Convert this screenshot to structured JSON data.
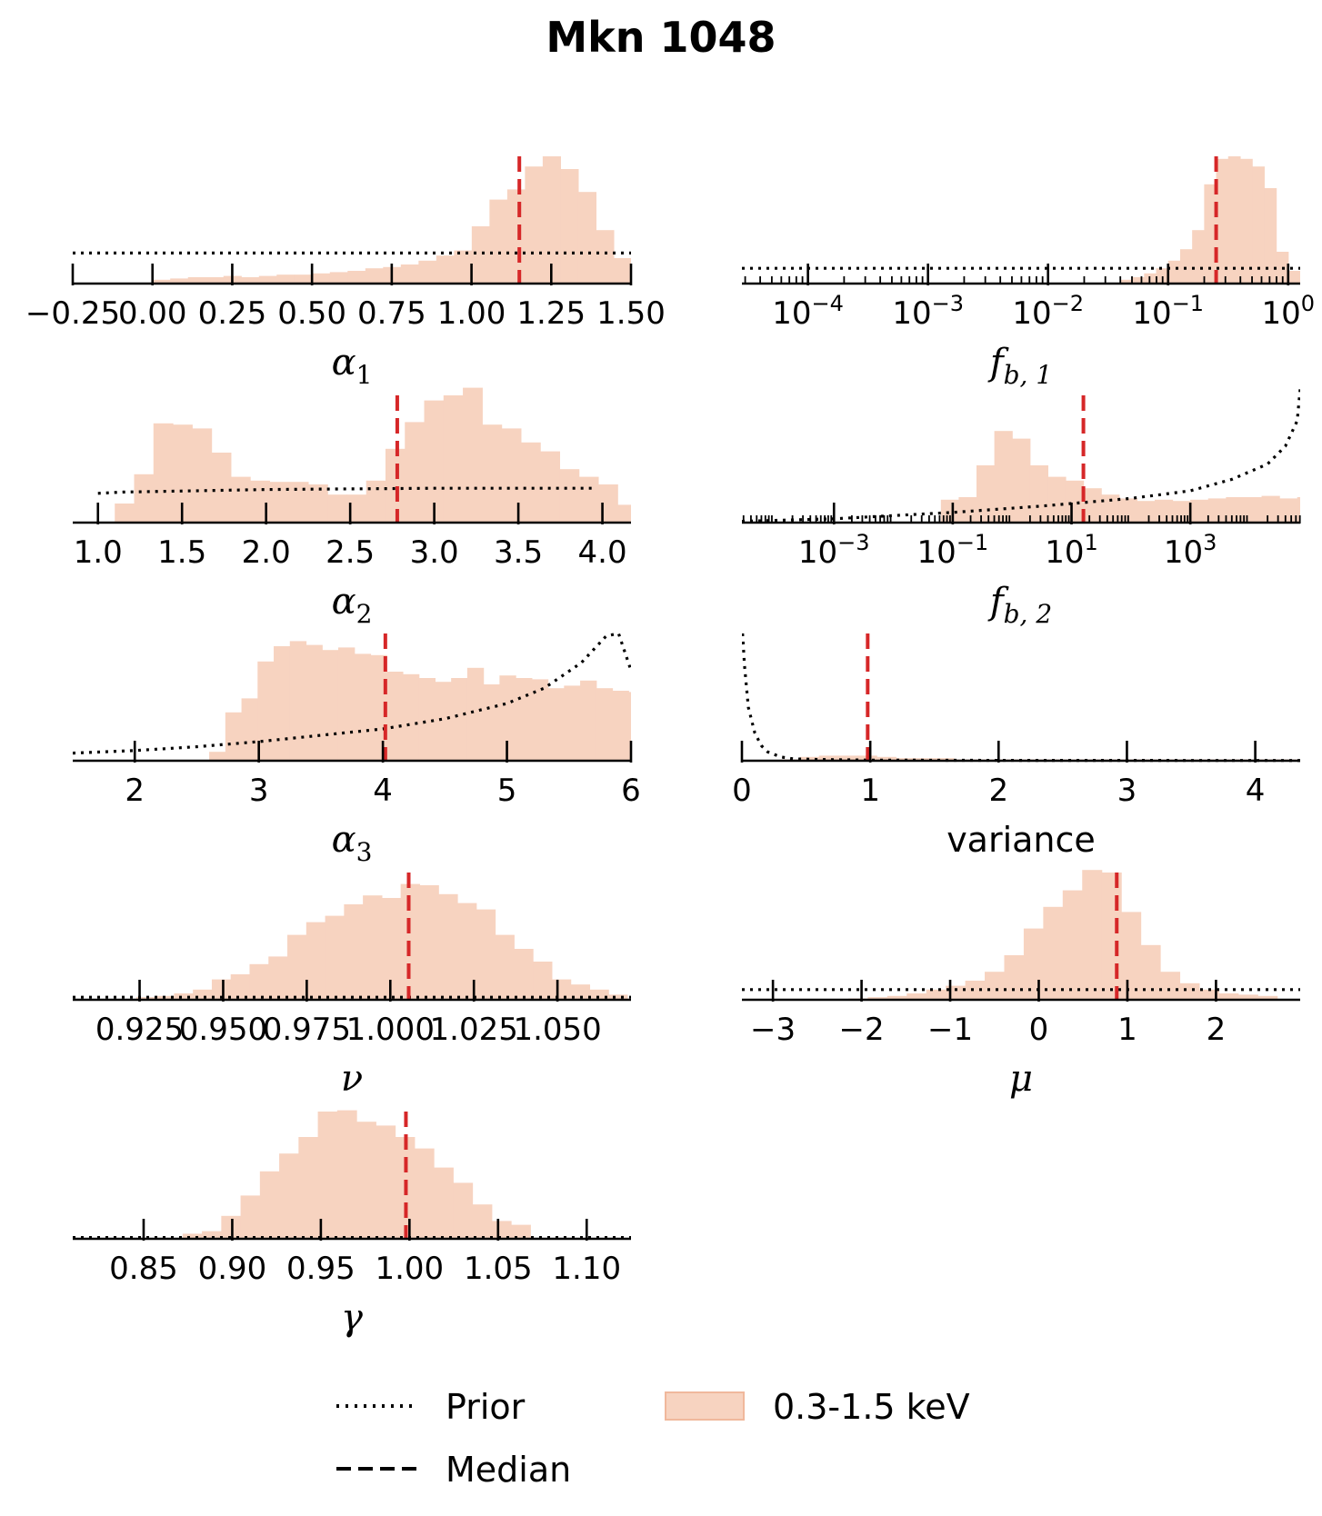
{
  "title": "Mkn 1048",
  "legend": {
    "prior_label": "Prior",
    "median_label": "Median",
    "hist_label": "0.3-1.5 keV"
  },
  "colors": {
    "hist_fill": "#f7d3c0",
    "hist_edge": "#f0b89c",
    "median": "#d62728",
    "prior": "#000000"
  },
  "chart_data": [
    {
      "type": "histogram",
      "id": "alpha1",
      "xlabel": "α",
      "xlabel_sub": "1",
      "scale": "linear",
      "xlim": [
        -0.25,
        1.5
      ],
      "ticks": [
        -0.25,
        0.0,
        0.25,
        0.5,
        0.75,
        1.0,
        1.25,
        1.5
      ],
      "tick_labels": [
        "−0.25",
        "0.00",
        "0.25",
        "0.50",
        "0.75",
        "1.00",
        "1.25",
        "1.50"
      ],
      "bin_start": 0.0,
      "bin_width": 0.0556,
      "heights": [
        0.03,
        0.04,
        0.05,
        0.05,
        0.06,
        0.05,
        0.06,
        0.07,
        0.07,
        0.08,
        0.09,
        0.1,
        0.12,
        0.13,
        0.15,
        0.18,
        0.22,
        0.26,
        0.45,
        0.66,
        0.74,
        0.92,
        1.0,
        0.9,
        0.72,
        0.42,
        0.2
      ],
      "median": 1.15,
      "prior": {
        "x": [
          -0.25,
          1.5
        ],
        "y": [
          0.24,
          0.24
        ]
      }
    },
    {
      "type": "histogram",
      "id": "fb1",
      "xlabel": "f",
      "xlabel_sub": "b, 1",
      "scale": "log",
      "xlim": [
        -4.55,
        0.1
      ],
      "ticks": [
        -4,
        -3,
        -2,
        -1,
        0
      ],
      "tick_labels": [
        "−4",
        "−3",
        "−2",
        "−1",
        "0"
      ],
      "bin_start": -1.4,
      "bin_width": 0.1,
      "heights": [
        0.03,
        0.05,
        0.08,
        0.12,
        0.18,
        0.27,
        0.42,
        0.78,
        0.98,
        1.0,
        0.98,
        0.92,
        0.75,
        0.25,
        0.1
      ],
      "median": -0.6,
      "prior": {
        "x": [
          -4.55,
          0.1
        ],
        "y": [
          0.12,
          0.12
        ]
      }
    },
    {
      "type": "histogram",
      "id": "alpha2",
      "xlabel": "α",
      "xlabel_sub": "2",
      "scale": "linear",
      "xlim": [
        0.85,
        4.17
      ],
      "ticks": [
        1.0,
        1.5,
        2.0,
        2.5,
        3.0,
        3.5,
        4.0
      ],
      "tick_labels": [
        "1.0",
        "1.5",
        "2.0",
        "2.5",
        "3.0",
        "3.5",
        "4.0"
      ],
      "bin_start": 1.1,
      "bin_width": 0.115,
      "heights": [
        0.15,
        0.38,
        0.78,
        0.77,
        0.74,
        0.55,
        0.36,
        0.33,
        0.32,
        0.32,
        0.3,
        0.22,
        0.22,
        0.33,
        0.58,
        0.79,
        0.96,
        1.0,
        1.06,
        0.77,
        0.74,
        0.63,
        0.56,
        0.42,
        0.36,
        0.3,
        0.14,
        0.05
      ],
      "median": 2.78,
      "prior": {
        "x": [
          1.0,
          1.15,
          2.0,
          3.0,
          3.5,
          3.95
        ],
        "y": [
          0.23,
          0.24,
          0.26,
          0.27,
          0.27,
          0.27
        ]
      }
    },
    {
      "type": "histogram",
      "id": "fb2",
      "xlabel": "f",
      "xlabel_sub": "b, 2",
      "scale": "log",
      "xlim": [
        -4.55,
        4.85
      ],
      "ticks": [
        -3,
        -1,
        1,
        3
      ],
      "tick_labels": [
        "−3",
        "−1",
        "1",
        "3"
      ],
      "bin_start": -1.2,
      "bin_width": 0.3,
      "heights": [
        0.18,
        0.2,
        0.45,
        0.72,
        0.66,
        0.45,
        0.36,
        0.33,
        0.27,
        0.22,
        0.19,
        0.17,
        0.18,
        0.17,
        0.18,
        0.19,
        0.2,
        0.2,
        0.21,
        0.19,
        0.2,
        0.19,
        0.2,
        0.17,
        0.2,
        0.26
      ],
      "median": 1.2,
      "prior": {
        "x": [
          -4.55,
          -3.0,
          -1.0,
          0.5,
          2.0,
          3.0,
          3.7,
          4.3,
          4.6,
          4.8,
          4.85
        ],
        "y": [
          0.01,
          0.03,
          0.08,
          0.13,
          0.19,
          0.25,
          0.34,
          0.46,
          0.6,
          0.8,
          1.05
        ]
      }
    },
    {
      "type": "histogram",
      "id": "alpha3",
      "xlabel": "α",
      "xlabel_sub": "3",
      "scale": "linear",
      "xlim": [
        1.5,
        6.0
      ],
      "ticks": [
        2,
        3,
        4,
        5,
        6
      ],
      "tick_labels": [
        "2",
        "3",
        "4",
        "5",
        "6"
      ],
      "bin_start": 2.6,
      "bin_width": 0.13,
      "heights": [
        0.07,
        0.38,
        0.49,
        0.78,
        0.9,
        0.94,
        0.91,
        0.87,
        0.89,
        0.84,
        0.83,
        0.7,
        0.68,
        0.65,
        0.62,
        0.65,
        0.73,
        0.6,
        0.67,
        0.65,
        0.64,
        0.57,
        0.59,
        0.63,
        0.57,
        0.55,
        0.54
      ],
      "median": 4.02,
      "prior": {
        "x": [
          1.5,
          2.0,
          2.5,
          3.0,
          3.5,
          4.0,
          4.5,
          5.0,
          5.3,
          5.6,
          5.8,
          5.9,
          6.0
        ],
        "y": [
          0.06,
          0.08,
          0.11,
          0.15,
          0.2,
          0.25,
          0.33,
          0.45,
          0.57,
          0.77,
          0.98,
          1.0,
          0.71
        ]
      }
    },
    {
      "type": "histogram",
      "id": "variance",
      "xlabel": "variance",
      "xlabel_sub": "",
      "scale": "linear",
      "xlim": [
        0,
        4.35
      ],
      "ticks": [
        0,
        1,
        2,
        3,
        4
      ],
      "tick_labels": [
        "0",
        "1",
        "2",
        "3",
        "4"
      ],
      "bin_start": 0.3,
      "bin_width": 0.15,
      "heights": [
        0.01,
        0.03,
        0.04,
        0.04,
        0.04,
        0.03,
        0.02,
        0.02,
        0.02,
        0.01,
        0.01,
        0.01,
        0.01,
        0.01,
        0.01,
        0.01,
        0.01,
        0.01,
        0.01,
        0.01,
        0.01,
        0.01,
        0.01,
        0.01,
        0.01,
        0.01,
        0.01
      ],
      "median": 0.98,
      "prior": {
        "x": [
          0.005,
          0.02,
          0.05,
          0.1,
          0.15,
          0.2,
          0.3,
          0.4,
          0.6,
          1.0,
          2.0,
          4.35
        ],
        "y": [
          1.0,
          0.75,
          0.42,
          0.22,
          0.12,
          0.07,
          0.03,
          0.015,
          0.01,
          0.005,
          0.003,
          0.002
        ]
      }
    },
    {
      "type": "histogram",
      "id": "nu",
      "xlabel": "ν",
      "xlabel_sub": "",
      "scale": "linear",
      "xlim": [
        0.905,
        1.072
      ],
      "ticks": [
        0.925,
        0.95,
        0.975,
        1.0,
        1.025,
        1.05
      ],
      "tick_labels": [
        "0.925",
        "0.950",
        "0.975",
        "1.000",
        "1.025",
        "1.050"
      ],
      "bin_start": 0.924,
      "bin_width": 0.00565,
      "heights": [
        0.02,
        0.03,
        0.05,
        0.08,
        0.16,
        0.2,
        0.28,
        0.34,
        0.51,
        0.61,
        0.66,
        0.75,
        0.82,
        0.8,
        0.91,
        0.9,
        0.83,
        0.76,
        0.71,
        0.51,
        0.4,
        0.3,
        0.16,
        0.12,
        0.08,
        0.04
      ],
      "median": 1.0055,
      "prior": {
        "x": [
          0.905,
          1.072
        ],
        "y": [
          0.02,
          0.02
        ]
      }
    },
    {
      "type": "histogram",
      "id": "mu",
      "xlabel": "μ",
      "xlabel_sub": "",
      "scale": "linear",
      "xlim": [
        -3.35,
        2.95
      ],
      "ticks": [
        -3,
        -2,
        -1,
        0,
        1,
        2
      ],
      "tick_labels": [
        "−3",
        "−2",
        "−1",
        "0",
        "1",
        "2"
      ],
      "bin_start": -2.15,
      "bin_width": 0.22,
      "heights": [
        0.01,
        0.02,
        0.03,
        0.05,
        0.08,
        0.11,
        0.15,
        0.22,
        0.35,
        0.56,
        0.73,
        0.86,
        1.02,
        1.0,
        0.69,
        0.43,
        0.22,
        0.13,
        0.08,
        0.05,
        0.04,
        0.03
      ],
      "median": 0.88,
      "prior": {
        "x": [
          -3.35,
          2.95
        ],
        "y": [
          0.08,
          0.08
        ]
      }
    },
    {
      "type": "histogram",
      "id": "gamma",
      "xlabel": "γ",
      "xlabel_sub": "",
      "scale": "linear",
      "xlim": [
        0.81,
        1.125
      ],
      "ticks": [
        0.85,
        0.9,
        0.95,
        1.0,
        1.05,
        1.1
      ],
      "tick_labels": [
        "0.85",
        "0.90",
        "0.95",
        "1.00",
        "1.05",
        "1.10"
      ],
      "bin_start": 0.872,
      "bin_width": 0.0109,
      "heights": [
        0.04,
        0.06,
        0.18,
        0.34,
        0.53,
        0.67,
        0.8,
        1.0,
        1.01,
        0.92,
        0.89,
        0.8,
        0.71,
        0.56,
        0.44,
        0.27,
        0.14,
        0.11
      ],
      "median": 0.998,
      "prior": {
        "x": [
          0.81,
          1.125
        ],
        "y": [
          0.01,
          0.01
        ]
      }
    }
  ]
}
